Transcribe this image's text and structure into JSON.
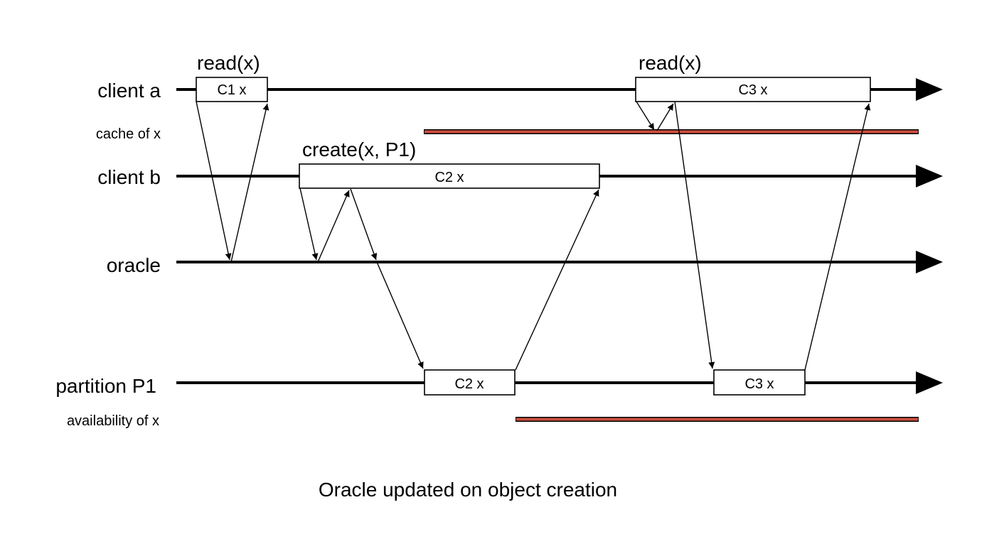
{
  "lanes": [
    {
      "id": "client-a",
      "label": "client a"
    },
    {
      "id": "client-b",
      "label": "client b"
    },
    {
      "id": "oracle",
      "label": "oracle"
    },
    {
      "id": "partition-p1",
      "label": "partition P1"
    }
  ],
  "sub_lanes": {
    "cache": "cache of x",
    "availability": "availability of x"
  },
  "operations": {
    "read_first": "read(x)",
    "read_second": "read(x)",
    "create": "create(x, P1)"
  },
  "boxes": {
    "client_a_c1": "C1 x",
    "client_a_c3": "C3 x",
    "client_b_c2": "C2 x",
    "partition_c2": "C2 x",
    "partition_c3": "C3 x"
  },
  "caption": "Oracle updated on object creation",
  "colors": {
    "line": "#000000",
    "state_bar": "#cc4f3e"
  }
}
